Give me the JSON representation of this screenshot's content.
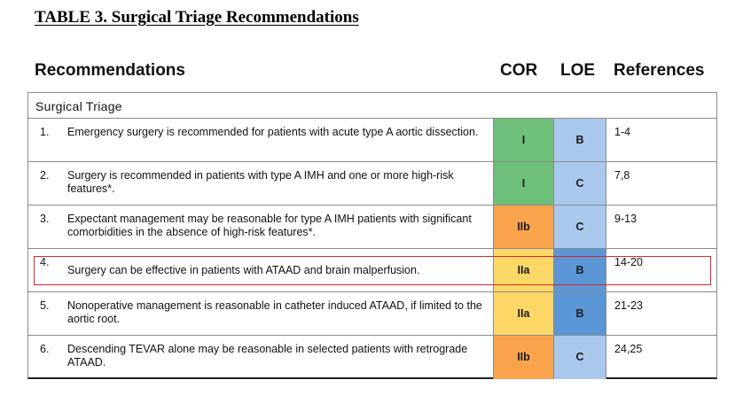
{
  "title": "TABLE 3. Surgical Triage Recommendations",
  "headers": {
    "recommendations": "Recommendations",
    "cor": "COR",
    "loe": "LOE",
    "references": "References"
  },
  "section": "Surgical Triage",
  "colors": {
    "cor_I": "#6dbf7a",
    "cor_IIa": "#fdd867",
    "cor_IIb": "#f9a44c",
    "loe_B": "#5b96d6",
    "loe_C": "#a9c8ec",
    "loe_B_light": "#a9c8ec",
    "highlight_border": "#d9262b"
  },
  "rows": [
    {
      "num": "1.",
      "text": "Emergency surgery is recommended for patients with acute type A aortic dissection.",
      "cor": "I",
      "loe": "B",
      "refs": "1-4"
    },
    {
      "num": "2.",
      "text": "Surgery is recommended in patients with type A IMH and one or more high-risk features*.",
      "cor": "I",
      "loe": "C",
      "refs": "7,8"
    },
    {
      "num": "3.",
      "text": "Expectant management may be reasonable for type A IMH patients with significant comorbidities in the absence of high-risk features*.",
      "cor": "IIb",
      "loe": "C",
      "refs": "9-13"
    },
    {
      "num": "4.",
      "text": "Surgery can be effective in patients with ATAAD and brain malperfusion.",
      "cor": "IIa",
      "loe": "B",
      "refs": "14-20"
    },
    {
      "num": "5.",
      "text": "Nonoperative management is reasonable in catheter induced ATAAD, if limited to the aortic root.",
      "cor": "IIa",
      "loe": "B",
      "refs": "21-23"
    },
    {
      "num": "6.",
      "text": "Descending TEVAR alone may be reasonable in selected patients with retrograde ATAAD.",
      "cor": "IIb",
      "loe": "C",
      "refs": "24,25"
    }
  ]
}
